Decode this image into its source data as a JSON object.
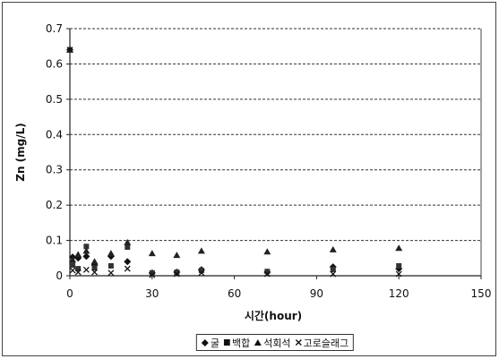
{
  "chart_data": {
    "type": "scatter",
    "title": "",
    "xlabel": "시간(hour)",
    "ylabel": "Zn (mg/L)",
    "xlim": [
      0,
      150
    ],
    "ylim": [
      0,
      0.7
    ],
    "x_ticks": [
      0,
      30,
      60,
      90,
      120,
      150
    ],
    "y_ticks": [
      0,
      0.1,
      0.2,
      0.3,
      0.4,
      0.5,
      0.6,
      0.7
    ],
    "grid": true,
    "legend_position": "bottom",
    "x": [
      0,
      1,
      3,
      6,
      9,
      15,
      21,
      30,
      39,
      48,
      72,
      96,
      120
    ],
    "series": [
      {
        "name": "굴",
        "marker": "diamond",
        "values": [
          0.64,
          0.053,
          0.05,
          0.055,
          0.03,
          0.055,
          0.04,
          0.008,
          0.01,
          0.017,
          0.01,
          0.025,
          0.02
        ]
      },
      {
        "name": "백합",
        "marker": "square",
        "values": [
          0.64,
          0.03,
          0.02,
          0.083,
          0.022,
          0.028,
          0.081,
          0.008,
          0.01,
          0.015,
          0.012,
          0.018,
          0.028
        ]
      },
      {
        "name": "석회석",
        "marker": "triangle",
        "values": [
          0.64,
          0.045,
          0.06,
          0.07,
          0.04,
          0.063,
          0.094,
          0.063,
          0.058,
          0.07,
          0.068,
          0.074,
          0.078
        ]
      },
      {
        "name": "고로슬래그",
        "marker": "x",
        "values": [
          0.64,
          0.015,
          0.01,
          0.017,
          0.01,
          0.008,
          0.02,
          0.002,
          0.005,
          0.008,
          0.005,
          0.005,
          0.005
        ]
      }
    ]
  }
}
